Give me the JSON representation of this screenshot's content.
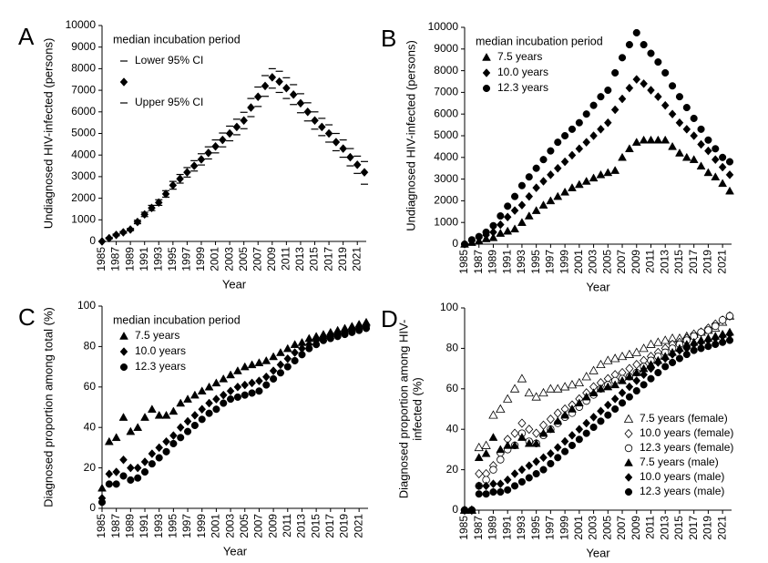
{
  "chart_data": [
    {
      "type": "scatter",
      "panel": "A",
      "xlabel": "Year",
      "ylabel": [
        "Undiagnosed HIV-infected (persons)"
      ],
      "legend_title": "median incubation period",
      "legend_loc": "upper left",
      "x": [
        1985,
        1986,
        1987,
        1988,
        1989,
        1990,
        1991,
        1992,
        1993,
        1994,
        1995,
        1996,
        1997,
        1998,
        1999,
        2000,
        2001,
        2002,
        2003,
        2004,
        2005,
        2006,
        2007,
        2008,
        2009,
        2010,
        2011,
        2012,
        2013,
        2014,
        2015,
        2016,
        2017,
        2018,
        2019,
        2020,
        2021,
        2022
      ],
      "xlim": [
        1985,
        2022
      ],
      "xticks": [
        1985,
        1987,
        1989,
        1991,
        1993,
        1995,
        1997,
        1999,
        2001,
        2003,
        2005,
        2007,
        2009,
        2011,
        2013,
        2015,
        2017,
        2019,
        2021
      ],
      "ylim": [
        0,
        10000
      ],
      "yticks": [
        0,
        1000,
        2000,
        3000,
        4000,
        5000,
        6000,
        7000,
        8000,
        9000,
        10000
      ],
      "series": [
        {
          "name": "Lower 95% CI",
          "color": "#000000",
          "marker": "dash",
          "open": false,
          "values": [
            0,
            120,
            260,
            380,
            500,
            820,
            1150,
            1430,
            1670,
            2050,
            2420,
            2700,
            2980,
            3260,
            3540,
            3820,
            4100,
            4380,
            4660,
            4940,
            5220,
            5780,
            6250,
            6720,
            7100,
            6900,
            6620,
            6340,
            5960,
            5580,
            5200,
            4900,
            4600,
            4200,
            3900,
            3500,
            3150,
            2650
          ]
        },
        {
          "name": "",
          "color": "#000000",
          "marker": "diamond",
          "open": false,
          "values": [
            0,
            150,
            300,
            420,
            550,
            900,
            1250,
            1550,
            1800,
            2200,
            2600,
            2900,
            3200,
            3500,
            3800,
            4100,
            4400,
            4700,
            5000,
            5300,
            5600,
            6200,
            6700,
            7200,
            7600,
            7400,
            7100,
            6800,
            6400,
            6000,
            5600,
            5300,
            5000,
            4600,
            4300,
            3900,
            3550,
            3200
          ]
        },
        {
          "name": "Upper 95% CI",
          "color": "#000000",
          "marker": "dash",
          "open": false,
          "values": [
            0,
            180,
            340,
            460,
            600,
            980,
            1350,
            1670,
            1930,
            2350,
            2780,
            3100,
            3420,
            3740,
            4060,
            4380,
            4700,
            5020,
            5340,
            5660,
            5980,
            6620,
            7150,
            7680,
            8000,
            7880,
            7580,
            7260,
            6840,
            6420,
            6000,
            5700,
            5400,
            5000,
            4700,
            4300,
            3950,
            3700
          ]
        }
      ]
    },
    {
      "type": "scatter",
      "panel": "B",
      "xlabel": "Year",
      "ylabel": [
        "Undiagnosed HIV-infected (persons)"
      ],
      "legend_title": "median incubation period",
      "legend_loc": "upper left",
      "x": [
        1985,
        1986,
        1987,
        1988,
        1989,
        1990,
        1991,
        1992,
        1993,
        1994,
        1995,
        1996,
        1997,
        1998,
        1999,
        2000,
        2001,
        2002,
        2003,
        2004,
        2005,
        2006,
        2007,
        2008,
        2009,
        2010,
        2011,
        2012,
        2013,
        2014,
        2015,
        2016,
        2017,
        2018,
        2019,
        2020,
        2021,
        2022
      ],
      "xlim": [
        1985,
        2022
      ],
      "xticks": [
        1985,
        1987,
        1989,
        1991,
        1993,
        1995,
        1997,
        1999,
        2001,
        2003,
        2005,
        2007,
        2009,
        2011,
        2013,
        2015,
        2017,
        2019,
        2021
      ],
      "ylim": [
        0,
        10000
      ],
      "yticks": [
        0,
        1000,
        2000,
        3000,
        4000,
        5000,
        6000,
        7000,
        8000,
        9000,
        10000
      ],
      "series": [
        {
          "name": "7.5 years",
          "color": "#000000",
          "marker": "triangle",
          "open": false,
          "values": [
            0,
            80,
            150,
            250,
            300,
            500,
            600,
            700,
            1000,
            1300,
            1550,
            1800,
            2000,
            2200,
            2400,
            2600,
            2750,
            2900,
            3050,
            3200,
            3300,
            3400,
            4000,
            4400,
            4700,
            4800,
            4800,
            4800,
            4800,
            4500,
            4200,
            4000,
            3900,
            3600,
            3300,
            3100,
            2800,
            2450
          ]
        },
        {
          "name": "10.0 years",
          "color": "#000000",
          "marker": "diamond",
          "open": false,
          "values": [
            0,
            150,
            300,
            420,
            550,
            900,
            1250,
            1550,
            1800,
            2200,
            2600,
            2900,
            3200,
            3500,
            3800,
            4100,
            4400,
            4700,
            5000,
            5300,
            5600,
            6200,
            6700,
            7200,
            7600,
            7400,
            7100,
            6800,
            6400,
            6000,
            5600,
            5300,
            5000,
            4600,
            4300,
            3900,
            3550,
            3200
          ]
        },
        {
          "name": "12.3 years",
          "color": "#000000",
          "marker": "circle",
          "open": false,
          "values": [
            0,
            200,
            350,
            550,
            850,
            1300,
            1750,
            2200,
            2700,
            3100,
            3500,
            3900,
            4300,
            4700,
            5000,
            5300,
            5600,
            6000,
            6400,
            6800,
            7100,
            7900,
            8600,
            9200,
            9750,
            9200,
            8800,
            8400,
            7900,
            7300,
            6800,
            6300,
            5800,
            5300,
            4800,
            4400,
            4000,
            3800
          ]
        }
      ]
    },
    {
      "type": "scatter",
      "panel": "C",
      "xlabel": "Year",
      "ylabel": [
        "Diagnosed proportion among total (%)"
      ],
      "legend_title": "median incubation period",
      "legend_loc": "upper left",
      "x": [
        1985,
        1986,
        1987,
        1988,
        1989,
        1990,
        1991,
        1992,
        1993,
        1994,
        1995,
        1996,
        1997,
        1998,
        1999,
        2000,
        2001,
        2002,
        2003,
        2004,
        2005,
        2006,
        2007,
        2008,
        2009,
        2010,
        2011,
        2012,
        2013,
        2014,
        2015,
        2016,
        2017,
        2018,
        2019,
        2020,
        2021,
        2022
      ],
      "xlim": [
        1985,
        2022
      ],
      "xticks": [
        1985,
        1987,
        1989,
        1991,
        1993,
        1995,
        1997,
        1999,
        2001,
        2003,
        2005,
        2007,
        2009,
        2011,
        2013,
        2015,
        2017,
        2019,
        2021
      ],
      "ylim": [
        0,
        100
      ],
      "yticks": [
        0,
        20,
        40,
        60,
        80,
        100
      ],
      "series": [
        {
          "name": "7.5 years",
          "color": "#000000",
          "marker": "triangle",
          "open": false,
          "values": [
            10,
            33,
            35,
            45,
            38,
            40,
            45,
            49,
            46,
            46,
            48,
            52,
            54,
            56,
            58,
            60,
            62,
            64,
            66,
            68,
            70,
            71,
            72,
            73,
            75,
            77,
            79,
            81,
            82,
            84,
            85,
            86,
            87,
            88,
            89,
            90,
            91,
            92
          ]
        },
        {
          "name": "10.0 years",
          "color": "#000000",
          "marker": "diamond",
          "open": false,
          "values": [
            5,
            17,
            18,
            24,
            20,
            20,
            23,
            27,
            30,
            33,
            36,
            40,
            43,
            46,
            49,
            52,
            54,
            56,
            58,
            60,
            61,
            62,
            63,
            65,
            68,
            71,
            74,
            77,
            79,
            81,
            83,
            84,
            85,
            86,
            87,
            88,
            89,
            90
          ]
        },
        {
          "name": "12.3 years",
          "color": "#000000",
          "marker": "circle",
          "open": false,
          "values": [
            3,
            12,
            12,
            16,
            14,
            15,
            18,
            22,
            25,
            28,
            32,
            35,
            38,
            41,
            44,
            47,
            49,
            52,
            54,
            55,
            56,
            57,
            58,
            61,
            64,
            67,
            70,
            73,
            76,
            79,
            81,
            83,
            84,
            85,
            86,
            87,
            88,
            89
          ]
        }
      ]
    },
    {
      "type": "scatter",
      "panel": "D",
      "xlabel": "Year",
      "ylabel": [
        "Diagnosed proportion among HIV-",
        "infected (%)"
      ],
      "legend_loc": "lower right",
      "x": [
        1985,
        1986,
        1987,
        1988,
        1989,
        1990,
        1991,
        1992,
        1993,
        1994,
        1995,
        1996,
        1997,
        1998,
        1999,
        2000,
        2001,
        2002,
        2003,
        2004,
        2005,
        2006,
        2007,
        2008,
        2009,
        2010,
        2011,
        2012,
        2013,
        2014,
        2015,
        2016,
        2017,
        2018,
        2019,
        2020,
        2021,
        2022
      ],
      "xlim": [
        1985,
        2022
      ],
      "xticks": [
        1985,
        1987,
        1989,
        1991,
        1993,
        1995,
        1997,
        1999,
        2001,
        2003,
        2005,
        2007,
        2009,
        2011,
        2013,
        2015,
        2017,
        2019,
        2021
      ],
      "ylim": [
        0,
        100
      ],
      "yticks": [
        0,
        20,
        40,
        60,
        80,
        100
      ],
      "series": [
        {
          "name": "7.5 years (female)",
          "color": "#000000",
          "marker": "triangle",
          "open": true,
          "values": [
            0,
            0,
            31,
            32,
            47,
            50,
            55,
            60,
            65,
            58,
            56,
            58,
            60,
            60,
            61,
            62,
            63,
            66,
            69,
            72,
            74,
            75,
            76,
            77,
            78,
            80,
            82,
            83,
            84,
            85,
            85,
            86,
            87,
            88,
            89,
            90,
            93,
            96
          ]
        },
        {
          "name": "10.0 years (female)",
          "color": "#000000",
          "marker": "diamond",
          "open": true,
          "values": [
            0,
            0,
            18,
            18,
            22,
            28,
            35,
            38,
            43,
            40,
            38,
            42,
            45,
            48,
            50,
            52,
            55,
            58,
            61,
            63,
            65,
            67,
            68,
            70,
            72,
            74,
            76,
            78,
            80,
            82,
            83,
            85,
            87,
            88,
            90,
            92,
            94,
            96
          ]
        },
        {
          "name": "12.3 years (female)",
          "color": "#000000",
          "marker": "circle",
          "open": true,
          "values": [
            0,
            0,
            12,
            15,
            20,
            25,
            30,
            32,
            38,
            34,
            33,
            37,
            40,
            43,
            46,
            48,
            51,
            54,
            57,
            60,
            62,
            64,
            65,
            66,
            68,
            71,
            74,
            76,
            78,
            80,
            82,
            84,
            86,
            88,
            89,
            91,
            94,
            96
          ]
        },
        {
          "name": "7.5 years (male)",
          "color": "#000000",
          "marker": "triangle",
          "open": false,
          "values": [
            0,
            0,
            26,
            28,
            36,
            30,
            32,
            32,
            36,
            33,
            33,
            38,
            40,
            44,
            47,
            50,
            53,
            56,
            58,
            60,
            61,
            62,
            64,
            66,
            68,
            70,
            72,
            74,
            76,
            78,
            80,
            82,
            83,
            84,
            85,
            86,
            87,
            88
          ]
        },
        {
          "name": "10.0 years (male)",
          "color": "#000000",
          "marker": "diamond",
          "open": false,
          "values": [
            0,
            0,
            12,
            12,
            13,
            13,
            15,
            18,
            20,
            22,
            24,
            26,
            28,
            31,
            34,
            37,
            40,
            43,
            46,
            49,
            52,
            55,
            58,
            61,
            64,
            67,
            70,
            73,
            75,
            77,
            79,
            80,
            82,
            83,
            84,
            85,
            86,
            87
          ]
        },
        {
          "name": "12.3 years (male)",
          "color": "#000000",
          "marker": "circle",
          "open": false,
          "values": [
            0,
            0,
            8,
            8,
            9,
            9,
            10,
            12,
            14,
            16,
            18,
            20,
            23,
            26,
            29,
            32,
            35,
            38,
            41,
            44,
            47,
            50,
            53,
            56,
            59,
            62,
            65,
            68,
            71,
            73,
            75,
            77,
            79,
            80,
            81,
            82,
            83,
            84
          ]
        }
      ]
    }
  ]
}
